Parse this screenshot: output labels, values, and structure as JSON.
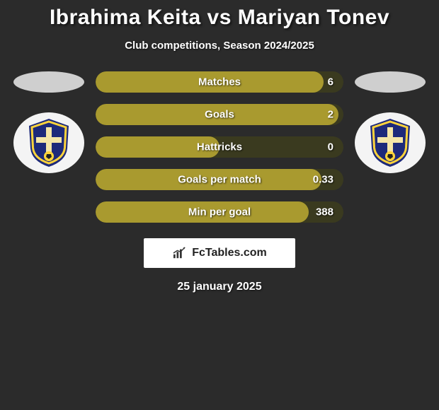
{
  "title": "Ibrahima Keita vs Mariyan Tonev",
  "subtitle": "Club competitions, Season 2024/2025",
  "date": "25 january 2025",
  "watermark": {
    "text": "FcTables.com"
  },
  "colors": {
    "background": "#2b2b2b",
    "text": "#ffffff",
    "disc": "#cfcfcf",
    "club_circle": "#f4f4f4",
    "bar_track": "#3a3a1f",
    "bar_fill": "#a99a2f",
    "watermark_bg": "#ffffff",
    "watermark_text": "#222222"
  },
  "crest": {
    "shield_fill": "#1e2a7a",
    "ring_fill": "#ffd43b",
    "stripe_fill": "#f5e6a8",
    "ball_fill": "#ffd43b"
  },
  "bars": [
    {
      "label": "Matches",
      "value": "6",
      "fill_pct": 92
    },
    {
      "label": "Goals",
      "value": "2",
      "fill_pct": 98
    },
    {
      "label": "Hattricks",
      "value": "0",
      "fill_pct": 50
    },
    {
      "label": "Goals per match",
      "value": "0.33",
      "fill_pct": 91
    },
    {
      "label": "Min per goal",
      "value": "388",
      "fill_pct": 86
    }
  ],
  "typography": {
    "title_fontsize": 30,
    "subtitle_fontsize": 15,
    "bar_label_fontsize": 15,
    "date_fontsize": 16
  }
}
